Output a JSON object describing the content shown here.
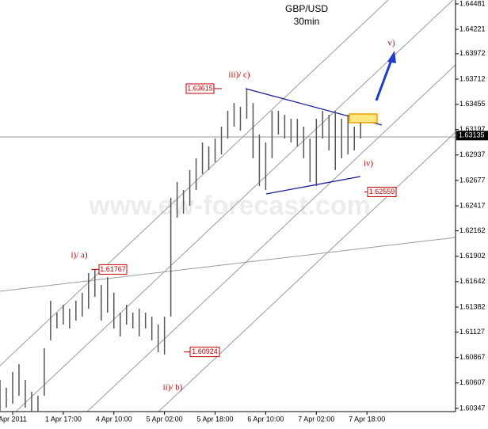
{
  "chart_data": {
    "type": "ohlc",
    "title": "GBP/USD",
    "subtitle": "30min",
    "watermark": "www.ew-forecast.com",
    "x": [
      -8,
      -4,
      0,
      4,
      8,
      12,
      16,
      20,
      24,
      28,
      32,
      36,
      40,
      44,
      48,
      52,
      56,
      60,
      64,
      68,
      72,
      76,
      80,
      84,
      88,
      92,
      96,
      100,
      104,
      108,
      112,
      116,
      120,
      124,
      128,
      132,
      136,
      140,
      144,
      148,
      152,
      156,
      160,
      164,
      168,
      172,
      176,
      180,
      184,
      188,
      192,
      196,
      200,
      204,
      208,
      212,
      216,
      220
    ],
    "high": [
      1.60638,
      1.60557,
      1.60719,
      1.608,
      1.60638,
      1.60516,
      1.60476,
      1.60961,
      1.61447,
      1.61325,
      1.61406,
      1.61366,
      1.61447,
      1.61528,
      1.6173,
      1.6177,
      1.61609,
      1.61689,
      1.61528,
      1.61325,
      1.61406,
      1.61325,
      1.61366,
      1.61325,
      1.61285,
      1.61204,
      1.61285,
      1.62498,
      1.6266,
      1.62579,
      1.62782,
      1.62903,
      1.63065,
      1.63024,
      1.63105,
      1.63227,
      1.63388,
      1.63469,
      1.63429,
      1.63607,
      1.63469,
      1.63146,
      1.63065,
      1.63388,
      1.63388,
      1.63348,
      1.63307,
      1.63307,
      1.63227,
      1.63105,
      1.63307,
      1.63388,
      1.63348,
      1.63388,
      1.63307,
      1.63348,
      1.63227,
      1.63267
    ],
    "low": [
      1.60314,
      1.60355,
      1.60395,
      1.60476,
      1.60355,
      1.60314,
      1.60314,
      1.60476,
      1.61042,
      1.61164,
      1.61204,
      1.61164,
      1.61245,
      1.61285,
      1.61366,
      1.61487,
      1.61245,
      1.61325,
      1.61164,
      1.61083,
      1.61204,
      1.61164,
      1.61083,
      1.61164,
      1.61042,
      1.60921,
      1.60897,
      1.61285,
      1.62296,
      1.62337,
      1.62418,
      1.62579,
      1.62741,
      1.62782,
      1.62863,
      1.62943,
      1.63105,
      1.63227,
      1.63186,
      1.63307,
      1.62903,
      1.6262,
      1.62579,
      1.62903,
      1.63146,
      1.63105,
      1.63065,
      1.63024,
      1.62903,
      1.6266,
      1.6262,
      1.63105,
      1.62984,
      1.62782,
      1.62903,
      1.62943,
      1.62984,
      1.63105
    ],
    "color": "#555555",
    "last_price": 1.63135,
    "levels": [
      1.63615,
      1.61767,
      1.60924,
      1.62559
    ],
    "wave_labels": [
      "iii)/ c)",
      "i)/ a)",
      "ii)/ b)",
      "iv)",
      "v)"
    ],
    "xlim": [
      -8,
      280
    ],
    "xticks": [
      {
        "value": 0,
        "label": "Apr 2011"
      },
      {
        "value": 32,
        "label": "1 Apr 17:00"
      },
      {
        "value": 64,
        "label": "4 Apr 10:00"
      },
      {
        "value": 96,
        "label": "5 Apr 02:00"
      },
      {
        "value": 128,
        "label": "5 Apr 18:00"
      },
      {
        "value": 160,
        "label": "6 Apr 10:00"
      },
      {
        "value": 192,
        "label": "7 Apr 02:00"
      },
      {
        "value": 224,
        "label": "7 Apr 18:00"
      }
    ],
    "ylim": [
      1.60314,
      1.64521
    ],
    "yticks": [
      1.64481,
      1.64221,
      1.63972,
      1.63712,
      1.63455,
      1.63197,
      1.62937,
      1.62677,
      1.62417,
      1.62162,
      1.61902,
      1.61642,
      1.61382,
      1.61127,
      1.60867,
      1.60607,
      1.60347
    ]
  }
}
